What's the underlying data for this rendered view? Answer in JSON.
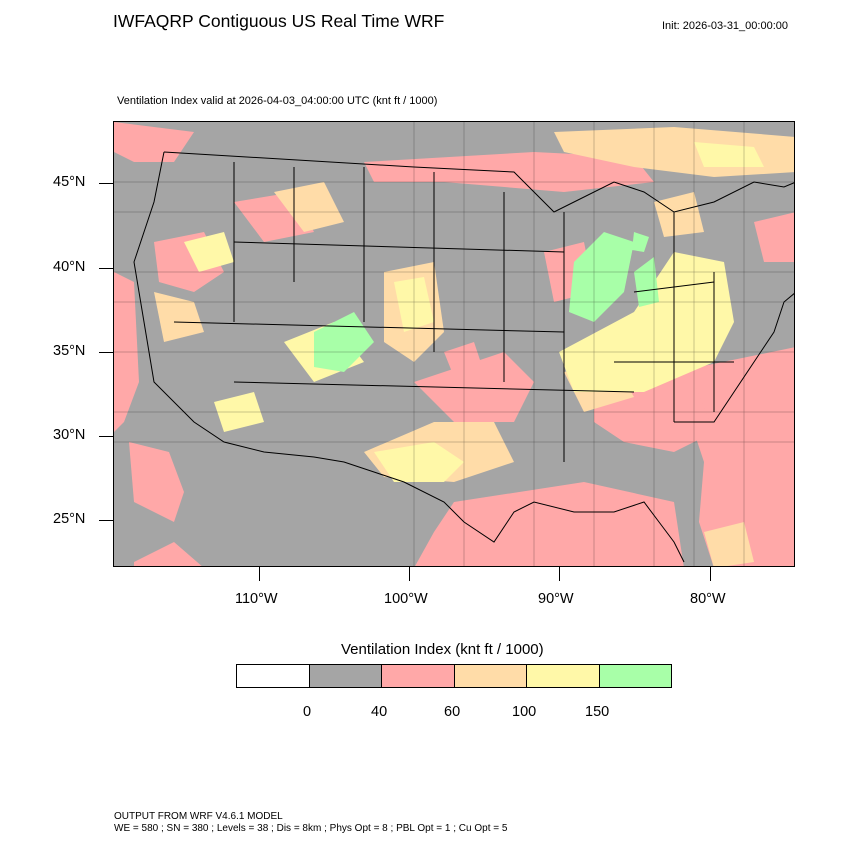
{
  "header": {
    "title": "IWFAQRP Contiguous US Real Time WRF",
    "init": "Init: 2026-03-31_00:00:00",
    "subtitle": "Ventilation Index valid at 2026-04-03_04:00:00 UTC   (knt ft / 1000)"
  },
  "map": {
    "lat_labels": [
      "45°N",
      "40°N",
      "35°N",
      "30°N",
      "25°N"
    ],
    "lon_labels": [
      "110°W",
      "100°W",
      "90°W",
      "80°W"
    ],
    "colors": {
      "gray": "#a5a5a5",
      "pink": "#ffa8a8",
      "peach": "#ffdca8",
      "yellow": "#fff8a8",
      "green": "#a8ffa8",
      "white": "#ffffff"
    }
  },
  "legend": {
    "title": "Ventilation Index  (knt ft / 1000)",
    "colors": [
      "#ffffff",
      "#a5a5a5",
      "#ffa8a8",
      "#ffdca8",
      "#fff8a8",
      "#a8ffa8"
    ],
    "ticks": [
      "0",
      "40",
      "60",
      "100",
      "150"
    ]
  },
  "footer": {
    "line1": "OUTPUT FROM WRF V4.6.1 MODEL",
    "line2": "WE = 580 ; SN = 380 ; Levels = 38 ; Dis = 8km ; Phys Opt = 8 ; PBL Opt = 1 ; Cu Opt = 5"
  }
}
